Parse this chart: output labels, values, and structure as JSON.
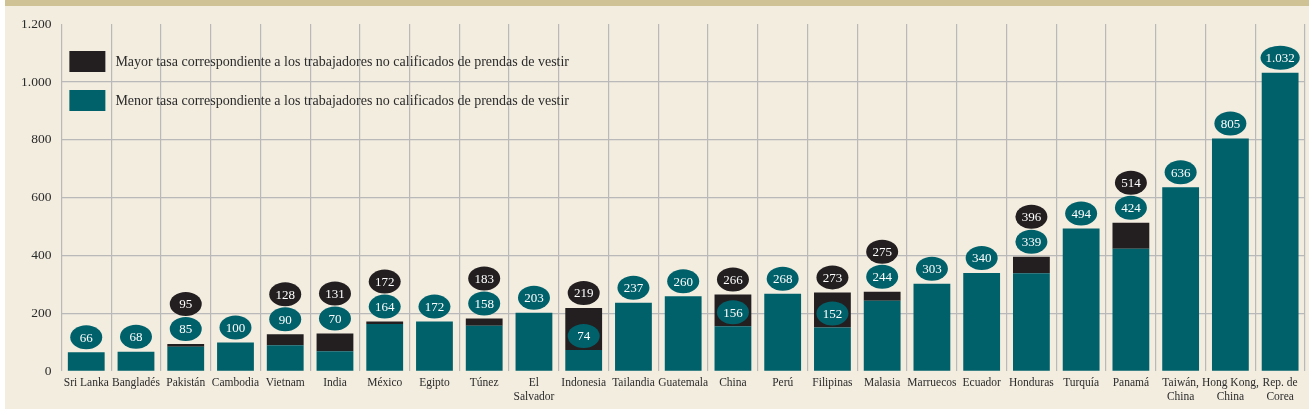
{
  "chart_data": {
    "type": "bar",
    "stacked": true,
    "grid": true,
    "legend": "top left",
    "categories": [
      "Sri Lanka",
      "Bangladés",
      "Pakistán",
      "Cambodia",
      "Vietnam",
      "India",
      "México",
      "Egipto",
      "Túnez",
      "El Salvador",
      "Indonesia",
      "Tailandia",
      "Guatemala",
      "China",
      "Perú",
      "Filipinas",
      "Malasia",
      "Marruecos",
      "Ecuador",
      "Honduras",
      "Turquía",
      "Panamá",
      "Taiwán, China",
      "Hong Kong, China",
      "Rep. de Corea"
    ],
    "series": [
      {
        "name": "Menor tasa correspondiente a los trabajadores no calificados de prendas de vestir",
        "color": "#00616b",
        "values": [
          66,
          68,
          85,
          100,
          90,
          70,
          164,
          172,
          158,
          203,
          74,
          237,
          260,
          156,
          268,
          152,
          244,
          303,
          340,
          339,
          494,
          424,
          636,
          805,
          1032
        ],
        "value_labels": [
          "66",
          "68",
          "85",
          "100",
          "90",
          "70",
          "164",
          "172",
          "158",
          "203",
          "74",
          "237",
          "260",
          "156",
          "268",
          "152",
          "244",
          "303",
          "340",
          "339",
          "494",
          "424",
          "636",
          "805",
          "1.032"
        ]
      },
      {
        "name": "Mayor tasa correspondiente a los trabajadores no calificados de prendas de vestir",
        "color": "#231f20",
        "values": [
          null,
          null,
          10,
          null,
          38,
          61,
          8,
          null,
          25,
          null,
          145,
          null,
          null,
          110,
          null,
          121,
          31,
          null,
          null,
          57,
          null,
          90,
          null,
          null,
          null
        ]
      }
    ],
    "totals": [
      null,
      null,
      "95",
      null,
      "128",
      "131",
      "172",
      null,
      "183",
      null,
      "219",
      null,
      null,
      "266",
      null,
      "273",
      "275",
      null,
      null,
      "396",
      null,
      "514",
      null,
      null,
      null
    ],
    "ylim": [
      0,
      1200
    ],
    "yticks": [
      0,
      200,
      400,
      600,
      800,
      {
        "value": 1000,
        "label": "1.000"
      },
      {
        "value": 1200,
        "label": "1.200"
      }
    ]
  }
}
